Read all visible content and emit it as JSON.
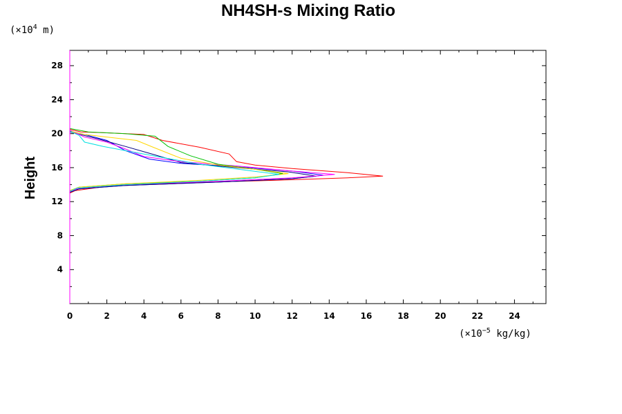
{
  "chart_data": {
    "type": "line",
    "title": "NH4SH-s Mixing Ratio",
    "ylabel": "Height",
    "y_unit": {
      "prefix": "(×10",
      "exp": "4",
      "suffix": " m)"
    },
    "x_unit": {
      "prefix": "(×10",
      "exp": "−5",
      "suffix": " kg/kg)"
    },
    "xlim": [
      0,
      25.7
    ],
    "ylim": [
      0,
      29.8
    ],
    "x_ticks": [
      "0",
      "2",
      "4",
      "6",
      "8",
      "10",
      "12",
      "14",
      "16",
      "18",
      "20",
      "22",
      "24"
    ],
    "y_ticks": [
      "4",
      "8",
      "12",
      "16",
      "20",
      "24",
      "28"
    ],
    "grid": false,
    "series": [
      {
        "color": "#ff0000",
        "points": [
          [
            0,
            13.0
          ],
          [
            0.3,
            13.3
          ],
          [
            2,
            13.8
          ],
          [
            6,
            14.2
          ],
          [
            11,
            14.5
          ],
          [
            15,
            14.8
          ],
          [
            16.9,
            15.0
          ],
          [
            15,
            15.4
          ],
          [
            12,
            15.9
          ],
          [
            10,
            16.3
          ],
          [
            9,
            16.7
          ],
          [
            8.6,
            17.6
          ],
          [
            7,
            18.4
          ],
          [
            5,
            19.2
          ],
          [
            4,
            19.9
          ],
          [
            2,
            20.1
          ],
          [
            0.6,
            20.2
          ],
          [
            0,
            20.5
          ]
        ]
      },
      {
        "color": "#0000ff",
        "points": [
          [
            0,
            13.1
          ],
          [
            0.5,
            13.5
          ],
          [
            3,
            13.9
          ],
          [
            8,
            14.3
          ],
          [
            12,
            14.7
          ],
          [
            13.7,
            15.1
          ],
          [
            12,
            15.6
          ],
          [
            9,
            16.1
          ],
          [
            6,
            16.5
          ],
          [
            4.3,
            17.0
          ],
          [
            3,
            18.0
          ],
          [
            2,
            19.2
          ],
          [
            0.8,
            19.9
          ],
          [
            0,
            20.3
          ]
        ]
      },
      {
        "color": "#000080",
        "points": [
          [
            0,
            13.1
          ],
          [
            0.5,
            13.5
          ],
          [
            3,
            13.9
          ],
          [
            8,
            14.3
          ],
          [
            12,
            14.7
          ],
          [
            13.3,
            15.0
          ],
          [
            11.8,
            15.5
          ],
          [
            9,
            16.0
          ],
          [
            6,
            16.6
          ],
          [
            4.6,
            17.5
          ],
          [
            3,
            18.5
          ],
          [
            1.5,
            19.4
          ],
          [
            0,
            20.2
          ]
        ]
      },
      {
        "color": "#ff00ff",
        "points": [
          [
            0,
            13.2
          ],
          [
            0.5,
            13.6
          ],
          [
            3,
            14.0
          ],
          [
            8,
            14.4
          ],
          [
            12,
            14.8
          ],
          [
            14.3,
            15.2
          ],
          [
            12,
            15.6
          ],
          [
            9,
            16.2
          ],
          [
            6,
            16.7
          ],
          [
            4.0,
            17.3
          ],
          [
            3,
            18.2
          ],
          [
            2,
            19.0
          ],
          [
            0.8,
            19.6
          ],
          [
            0,
            20.4
          ]
        ]
      },
      {
        "color": "#00c000",
        "points": [
          [
            0,
            13.3
          ],
          [
            0.5,
            13.7
          ],
          [
            3,
            14.1
          ],
          [
            7,
            14.4
          ],
          [
            10,
            14.8
          ],
          [
            11.5,
            15.3
          ],
          [
            10,
            15.8
          ],
          [
            8,
            16.4
          ],
          [
            6.5,
            17.4
          ],
          [
            5.3,
            18.5
          ],
          [
            4.6,
            19.7
          ],
          [
            3,
            20.0
          ],
          [
            1,
            20.2
          ],
          [
            0,
            20.6
          ]
        ]
      },
      {
        "color": "#ffd700",
        "points": [
          [
            0,
            13.3
          ],
          [
            0.5,
            13.7
          ],
          [
            3,
            14.1
          ],
          [
            7,
            14.5
          ],
          [
            10,
            14.9
          ],
          [
            11.8,
            15.3
          ],
          [
            10,
            15.8
          ],
          [
            8,
            16.3
          ],
          [
            6,
            17.1
          ],
          [
            4.5,
            18.4
          ],
          [
            3.6,
            19.2
          ],
          [
            2,
            19.6
          ],
          [
            0.8,
            19.9
          ],
          [
            0,
            20.3
          ]
        ]
      },
      {
        "color": "#00e0e0",
        "points": [
          [
            0,
            13.2
          ],
          [
            0.4,
            13.6
          ],
          [
            3,
            14.0
          ],
          [
            7,
            14.4
          ],
          [
            10,
            14.8
          ],
          [
            11.3,
            15.2
          ],
          [
            9.5,
            15.7
          ],
          [
            7,
            16.4
          ],
          [
            5,
            17.2
          ],
          [
            3.5,
            17.8
          ],
          [
            1.8,
            18.5
          ],
          [
            0.8,
            19.0
          ],
          [
            0.5,
            19.8
          ],
          [
            0,
            20.3
          ]
        ]
      }
    ]
  }
}
